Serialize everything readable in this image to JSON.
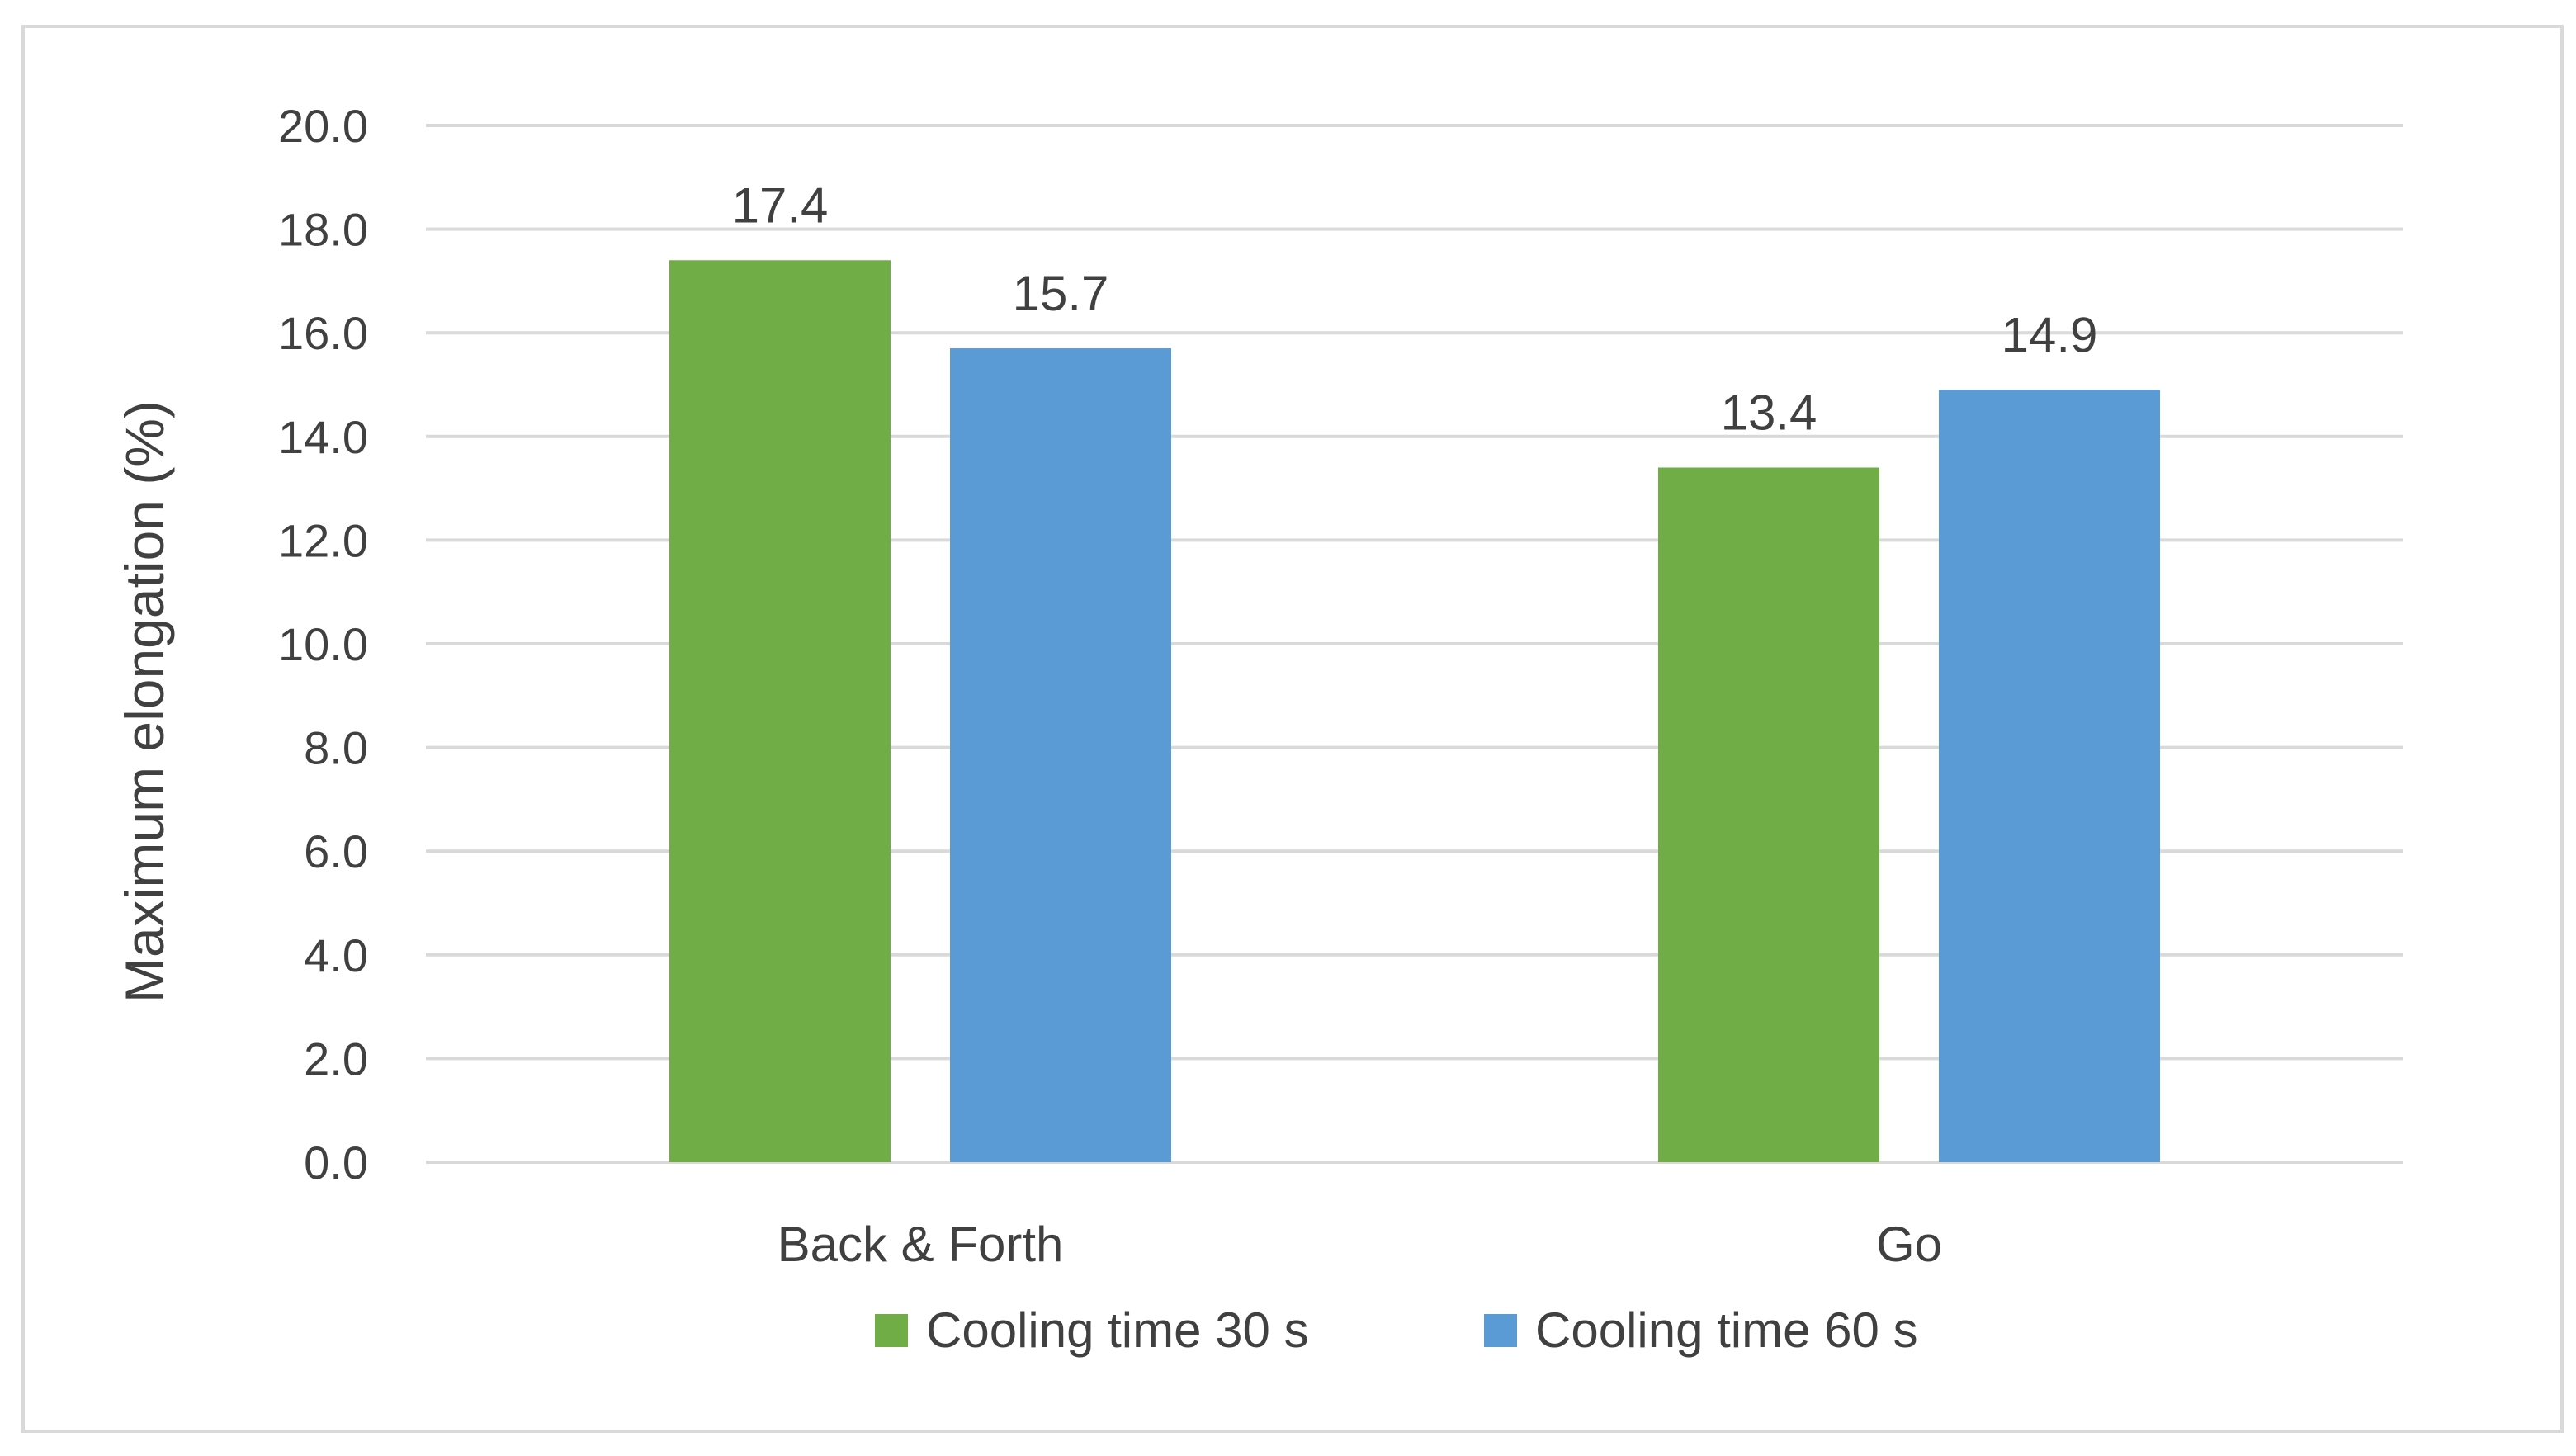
{
  "chart_data": {
    "type": "bar",
    "title": "",
    "xlabel": "",
    "ylabel": "Maximum elongation (%)",
    "categories": [
      "Back & Forth",
      "Go"
    ],
    "series": [
      {
        "name": "Cooling time 30 s",
        "values": [
          17.4,
          13.4
        ],
        "labels": [
          "17.4",
          "13.4"
        ],
        "color": "#70AD47"
      },
      {
        "name": "Cooling time 60 s",
        "values": [
          15.7,
          14.9
        ],
        "labels": [
          "15.7",
          "14.9"
        ],
        "color": "#5B9BD5"
      }
    ],
    "ylim": [
      0,
      20
    ],
    "ytick_values": [
      0,
      2,
      4,
      6,
      8,
      10,
      12,
      14,
      16,
      18,
      20
    ],
    "yticks": [
      "0.0",
      "2.0",
      "4.0",
      "6.0",
      "8.0",
      "10.0",
      "12.0",
      "14.0",
      "16.0",
      "18.0",
      "20.0"
    ],
    "grid": true,
    "legend_position": "bottom",
    "gridline_color": "#D9D9D9",
    "text_color": "#404040"
  }
}
